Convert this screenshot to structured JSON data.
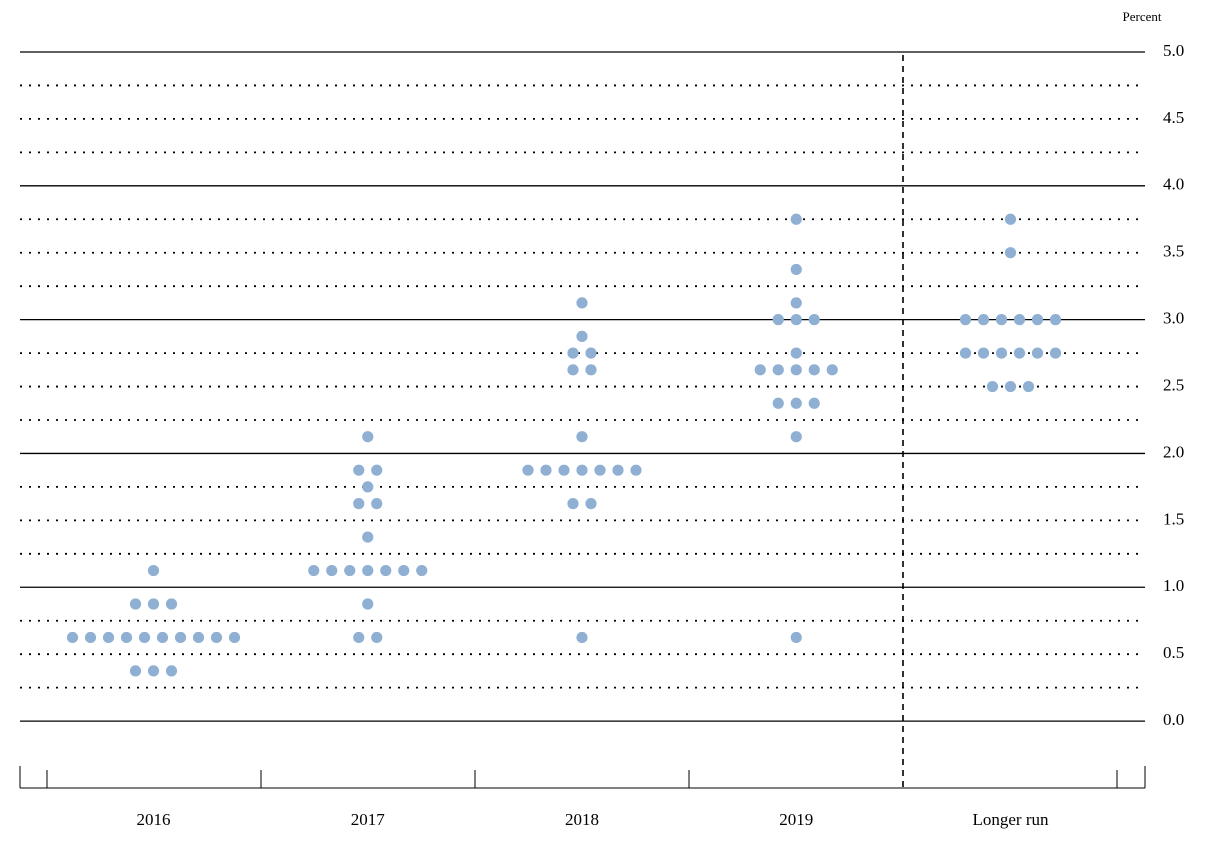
{
  "chart_data": {
    "type": "dot",
    "y_label": "Percent",
    "categories": [
      "2016",
      "2017",
      "2018",
      "2019",
      "Longer run"
    ],
    "values": [
      [
        0.375,
        0.375,
        0.375,
        0.625,
        0.625,
        0.625,
        0.625,
        0.625,
        0.625,
        0.625,
        0.625,
        0.625,
        0.625,
        0.875,
        0.875,
        0.875,
        1.125
      ],
      [
        0.625,
        0.625,
        0.875,
        1.125,
        1.125,
        1.125,
        1.125,
        1.125,
        1.125,
        1.125,
        1.375,
        1.625,
        1.625,
        1.75,
        1.875,
        1.875,
        2.125
      ],
      [
        0.625,
        1.625,
        1.625,
        1.875,
        1.875,
        1.875,
        1.875,
        1.875,
        1.875,
        1.875,
        2.125,
        2.625,
        2.625,
        2.75,
        2.75,
        2.875,
        3.125
      ],
      [
        0.625,
        2.125,
        2.375,
        2.375,
        2.375,
        2.625,
        2.625,
        2.625,
        2.625,
        2.625,
        2.75,
        3.0,
        3.0,
        3.0,
        3.125,
        3.375,
        3.75
      ],
      [
        2.5,
        2.5,
        2.5,
        2.75,
        2.75,
        2.75,
        2.75,
        2.75,
        2.75,
        3.0,
        3.0,
        3.0,
        3.0,
        3.0,
        3.0,
        3.5,
        3.75
      ]
    ],
    "color": "#8fb0d3",
    "ylim": [
      -0.5,
      5.0
    ],
    "yticks": [
      {
        "value": 0,
        "label": "0.0"
      },
      0.5,
      {
        "value": 1,
        "label": "1.0"
      },
      1.5,
      {
        "value": 2,
        "label": "2.0"
      },
      2.5,
      {
        "value": 3,
        "label": "3.0"
      },
      3.5,
      {
        "value": 4,
        "label": "4.0"
      },
      4.5,
      {
        "value": 5,
        "label": "5.0"
      }
    ],
    "minor_yticks": [
      0.25,
      0.75,
      1.25,
      1.75,
      2.25,
      2.75,
      3.25,
      3.75,
      4.25,
      4.75
    ]
  }
}
